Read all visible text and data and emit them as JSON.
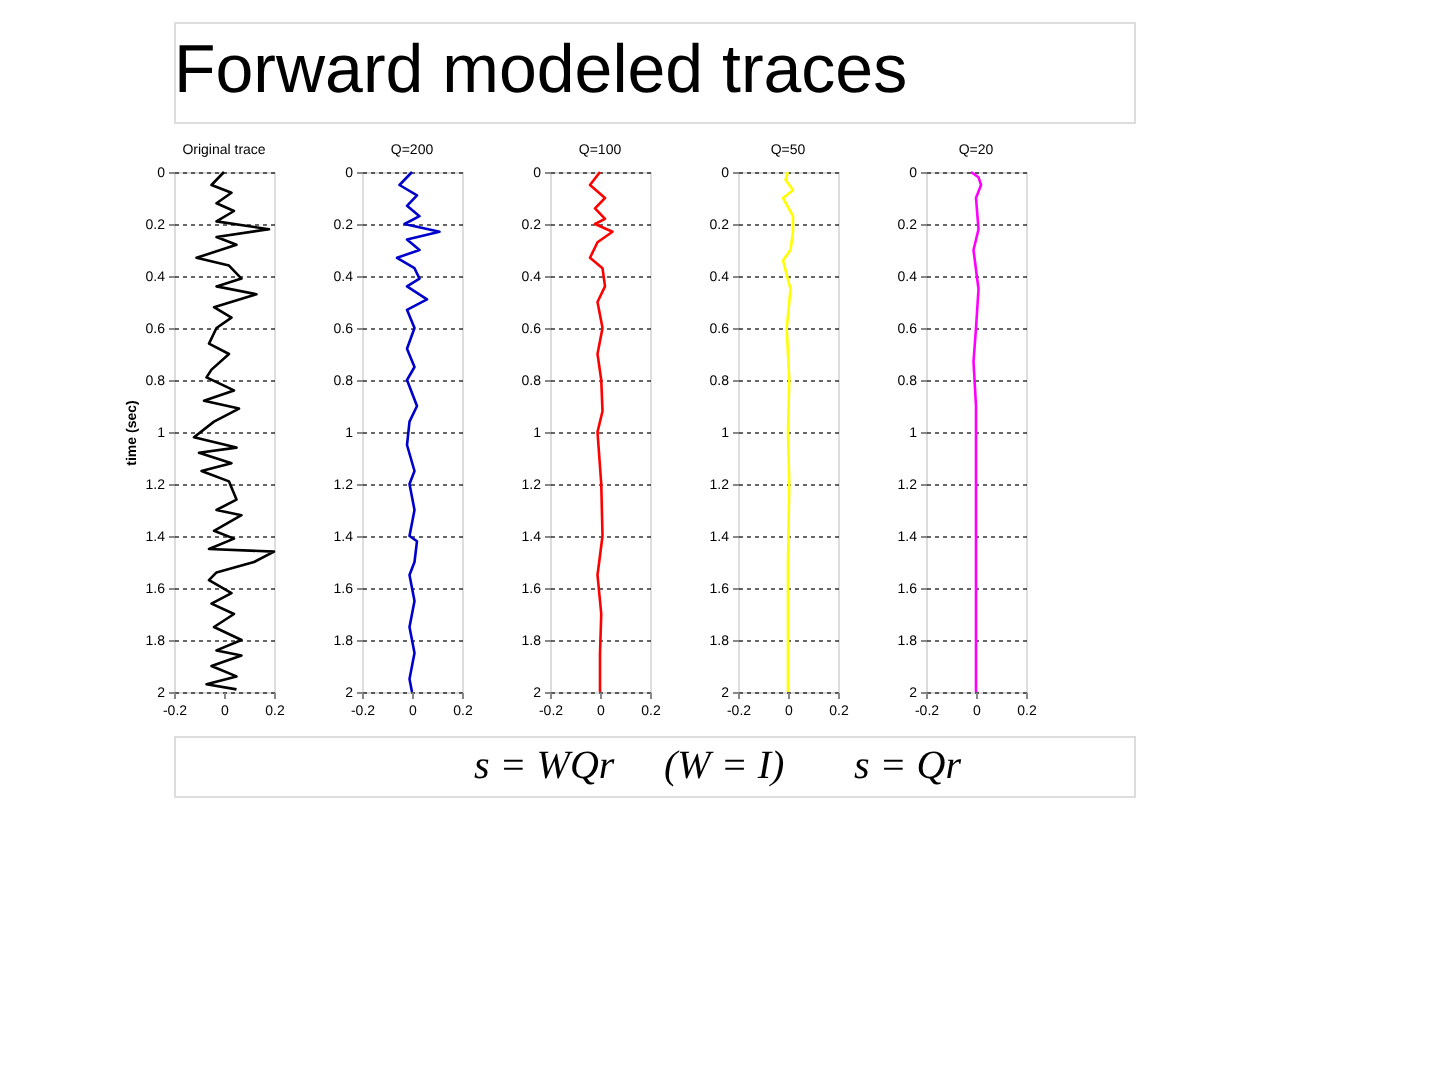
{
  "chart_data": [
    {
      "type": "line",
      "title": "Original trace",
      "ylabel": "time (sec)",
      "annotations": [
        "Forward modeled traces",
        "s = WQr",
        "(W = I)",
        "s = Qr"
      ],
      "xlim": [
        -0.2,
        0.2
      ],
      "xticks": [
        -0.2,
        0,
        0.2
      ],
      "ylim": [
        2,
        0
      ],
      "yticks": [
        0,
        0.2,
        0.4,
        0.6,
        0.8,
        1,
        1.2,
        1.4,
        1.6,
        1.8,
        2
      ],
      "grid": "y",
      "series": [
        {
          "color": "#000000",
          "x": [
            0,
            -0.05,
            0.03,
            -0.03,
            0.04,
            -0.03,
            0.18,
            -0.03,
            0.05,
            -0.11,
            0.02,
            0.07,
            -0.03,
            0.13,
            -0.04,
            0.03,
            -0.03,
            -0.06,
            0.02,
            -0.05,
            -0.07,
            0.04,
            -0.08,
            0.06,
            -0.04,
            -0.12,
            0.05,
            -0.1,
            0.03,
            -0.09,
            0.02,
            0.05,
            -0.03,
            0.07,
            -0.04,
            0.04,
            -0.06,
            0.2,
            0.12,
            -0.03,
            -0.06,
            0.03,
            -0.05,
            0.04,
            -0.04,
            0.07,
            -0.03,
            0.07,
            -0.05,
            0.05,
            -0.07,
            0.05
          ],
          "values": [
            0,
            0.05,
            0.08,
            0.12,
            0.15,
            0.19,
            0.22,
            0.25,
            0.28,
            0.33,
            0.36,
            0.41,
            0.44,
            0.47,
            0.52,
            0.56,
            0.6,
            0.66,
            0.7,
            0.76,
            0.79,
            0.84,
            0.88,
            0.91,
            0.96,
            1.02,
            1.06,
            1.08,
            1.12,
            1.15,
            1.19,
            1.26,
            1.3,
            1.32,
            1.38,
            1.41,
            1.45,
            1.46,
            1.5,
            1.54,
            1.57,
            1.62,
            1.66,
            1.7,
            1.75,
            1.8,
            1.84,
            1.86,
            1.9,
            1.94,
            1.97,
            1.99
          ]
        }
      ]
    },
    {
      "type": "line",
      "title": "Q=200",
      "xlim": [
        -0.2,
        0.2
      ],
      "xticks": [
        -0.2,
        0,
        0.2
      ],
      "ylim": [
        2,
        0
      ],
      "yticks": [
        0,
        0.2,
        0.4,
        0.6,
        0.8,
        1,
        1.2,
        1.4,
        1.6,
        1.8,
        2
      ],
      "grid": "y",
      "series": [
        {
          "color": "#0000cc",
          "x": [
            0,
            -0.05,
            0.02,
            -0.02,
            0.03,
            -0.03,
            0.11,
            -0.02,
            0.03,
            -0.06,
            0.01,
            0.03,
            -0.02,
            0.06,
            -0.02,
            0.01,
            -0.02,
            0.01,
            -0.02,
            0.02,
            -0.01,
            -0.02,
            0.01,
            -0.01,
            0.01,
            -0.01,
            0.02,
            0.01,
            -0.01,
            0.01,
            -0.01,
            0.01,
            -0.01,
            0
          ],
          "values": [
            0,
            0.05,
            0.09,
            0.13,
            0.17,
            0.2,
            0.23,
            0.26,
            0.3,
            0.33,
            0.37,
            0.41,
            0.44,
            0.49,
            0.53,
            0.6,
            0.68,
            0.75,
            0.8,
            0.9,
            0.96,
            1.05,
            1.15,
            1.2,
            1.3,
            1.4,
            1.42,
            1.5,
            1.55,
            1.65,
            1.75,
            1.85,
            1.95,
            2
          ]
        }
      ]
    },
    {
      "type": "line",
      "title": "Q=100",
      "xlim": [
        -0.2,
        0.2
      ],
      "xticks": [
        -0.2,
        0,
        0.2
      ],
      "ylim": [
        2,
        0
      ],
      "yticks": [
        0,
        0.2,
        0.4,
        0.6,
        0.8,
        1,
        1.2,
        1.4,
        1.6,
        1.8,
        2
      ],
      "grid": "y",
      "series": [
        {
          "color": "#ff0000",
          "x": [
            0,
            -0.04,
            0.02,
            -0.02,
            0.02,
            -0.02,
            0.05,
            -0.01,
            -0.04,
            0.01,
            0.02,
            -0.01,
            0.01,
            -0.01,
            0.005,
            0.01,
            -0.01,
            0.005,
            0.01,
            -0.01,
            0.005,
            0,
            0
          ],
          "values": [
            0,
            0.05,
            0.1,
            0.14,
            0.18,
            0.2,
            0.23,
            0.27,
            0.33,
            0.37,
            0.44,
            0.5,
            0.6,
            0.7,
            0.8,
            0.92,
            1.0,
            1.2,
            1.4,
            1.55,
            1.7,
            1.85,
            2
          ]
        }
      ]
    },
    {
      "type": "line",
      "title": "Q=50",
      "xlim": [
        -0.2,
        0.2
      ],
      "xticks": [
        -0.2,
        0,
        0.2
      ],
      "ylim": [
        2,
        0
      ],
      "yticks": [
        0,
        0.2,
        0.4,
        0.6,
        0.8,
        1,
        1.2,
        1.4,
        1.6,
        1.8,
        2
      ],
      "grid": "y",
      "series": [
        {
          "color": "#ffff00",
          "x": [
            0,
            -0.01,
            0.02,
            -0.02,
            0.02,
            0.02,
            0.01,
            -0.02,
            0.01,
            -0.005,
            0.005,
            0,
            0.005,
            0,
            0
          ],
          "values": [
            0,
            0.03,
            0.07,
            0.1,
            0.17,
            0.23,
            0.3,
            0.34,
            0.45,
            0.6,
            0.8,
            1.0,
            1.2,
            1.5,
            2
          ]
        }
      ]
    },
    {
      "type": "line",
      "title": "Q=20",
      "xlim": [
        -0.2,
        0.2
      ],
      "xticks": [
        -0.2,
        0,
        0.2
      ],
      "ylim": [
        2,
        0
      ],
      "yticks": [
        0,
        0.2,
        0.4,
        0.6,
        0.8,
        1,
        1.2,
        1.4,
        1.6,
        1.8,
        2
      ],
      "grid": "y",
      "series": [
        {
          "color": "#ff00ff",
          "x": [
            -0.02,
            0.01,
            0.02,
            0,
            0.01,
            -0.01,
            0.01,
            0,
            -0.01,
            0,
            0,
            0,
            0
          ],
          "values": [
            0,
            0.02,
            0.05,
            0.1,
            0.22,
            0.3,
            0.45,
            0.6,
            0.73,
            0.9,
            1.2,
            1.6,
            2
          ]
        }
      ]
    }
  ]
}
